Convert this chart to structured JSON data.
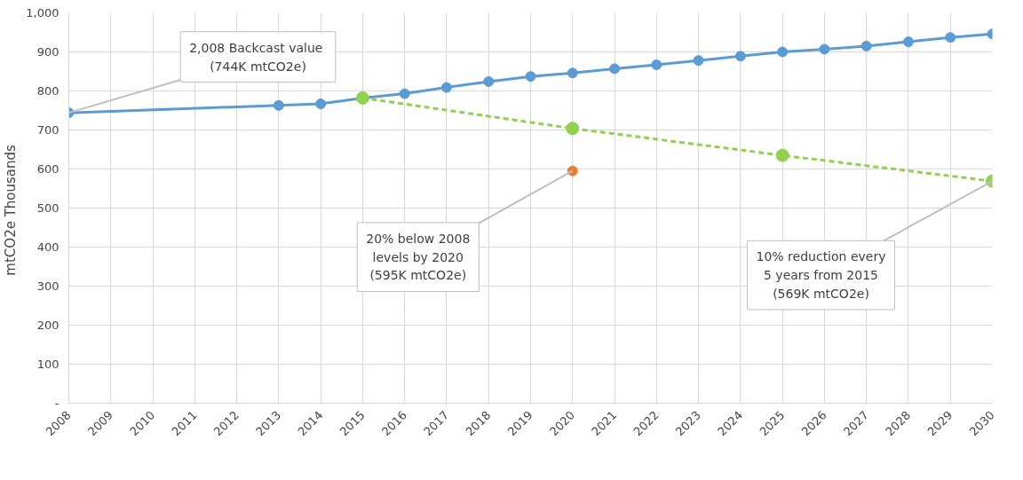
{
  "chart_data": {
    "type": "line",
    "ylabel": "mtCO2e  Thousands",
    "x": [
      2008,
      2013,
      2014,
      2015,
      2016,
      2017,
      2018,
      2019,
      2020,
      2021,
      2022,
      2023,
      2024,
      2025,
      2026,
      2027,
      2028,
      2029,
      2030
    ],
    "series": [
      {
        "color": "#5b9bd5",
        "values": [
          744,
          763,
          767,
          782,
          793,
          809,
          824,
          837,
          846,
          857,
          867,
          878,
          889,
          900,
          907,
          915,
          926,
          937,
          946
        ],
        "line_style": "solid"
      },
      {
        "color": "#92d050",
        "x": [
          2015,
          2020,
          2025,
          2030
        ],
        "values": [
          782,
          704,
          635,
          569
        ],
        "line_style": "dashed"
      },
      {
        "type": "scatter",
        "color": "#ed7d31",
        "x": [
          2020
        ],
        "values": [
          595
        ]
      }
    ],
    "xlim": [
      2008,
      2030
    ],
    "xticks": [
      2008,
      2009,
      2010,
      2011,
      2012,
      2013,
      2014,
      2015,
      2016,
      2017,
      2018,
      2019,
      2020,
      2021,
      2022,
      2023,
      2024,
      2025,
      2026,
      2027,
      2028,
      2029,
      2030
    ],
    "ylim": [
      0,
      1000
    ],
    "yticks": [
      {
        "value": 0,
        "label": "-"
      },
      100,
      200,
      300,
      400,
      500,
      600,
      700,
      800,
      900,
      {
        "value": 1000,
        "label": "1,000"
      }
    ],
    "grid": true,
    "marker": "circle",
    "annotations": [
      {
        "text": "2,008  Backcast value\n(744K mtCO2e)",
        "x": 2008,
        "y": 744
      },
      {
        "text": "20% below 2008\nlevels by 2020\n(595K mtCO2e)",
        "x": 2020,
        "y": 595
      },
      {
        "text": "10% reduction every\n5 years from 2015\n(569K mtCO2e)",
        "x": 2030,
        "y": 569
      }
    ]
  }
}
